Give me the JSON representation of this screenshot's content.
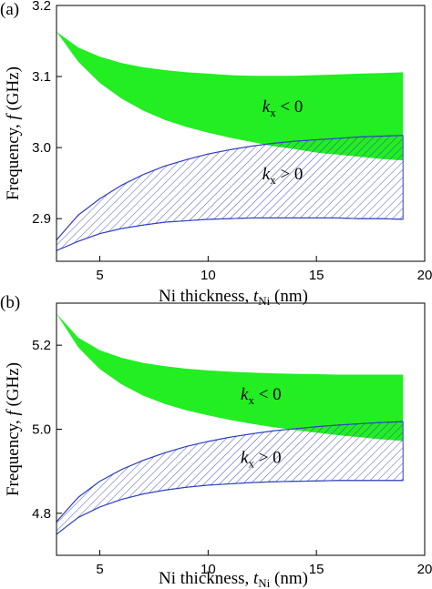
{
  "chart_data": [
    {
      "panel_label": "(a)",
      "type": "area",
      "xlabel_main": "Ni thickness, ",
      "xlabel_var": "t",
      "xlabel_sub": "Ni",
      "xlabel_unit": " (nm)",
      "ylabel_main": "Frequency, ",
      "ylabel_var": "f",
      "ylabel_unit": " (GHz)",
      "xlim": [
        3,
        20
      ],
      "ylim": [
        2.84,
        3.2
      ],
      "xticks": [
        5,
        10,
        15,
        20
      ],
      "xtick_labels": [
        "5",
        "10",
        "15",
        "20"
      ],
      "yticks": [
        2.9,
        3.0,
        3.1,
        3.2
      ],
      "ytick_labels": [
        "2.9",
        "3.0",
        "3.1",
        "3.2"
      ],
      "grid": false,
      "series": [
        {
          "name_var": "k",
          "name_sub": "x",
          "name_rel": " < 0",
          "fill": "solid",
          "color": "#22ee22",
          "label_pos": [
            12.5,
            3.05
          ],
          "x": [
            3,
            4,
            5,
            6,
            7,
            8,
            9,
            10,
            11,
            12,
            13,
            14,
            15,
            16,
            17,
            18,
            19
          ],
          "upper": [
            3.163,
            3.141,
            3.128,
            3.119,
            3.113,
            3.109,
            3.106,
            3.104,
            3.102,
            3.101,
            3.101,
            3.101,
            3.102,
            3.103,
            3.104,
            3.105,
            3.106
          ],
          "lower": [
            3.163,
            3.121,
            3.091,
            3.069,
            3.052,
            3.039,
            3.029,
            3.021,
            3.014,
            3.008,
            3.002,
            2.998,
            2.993,
            2.99,
            2.987,
            2.984,
            2.982
          ]
        },
        {
          "name_var": "k",
          "name_sub": "x",
          "name_rel": " > 0",
          "fill": "hatch",
          "color": "#3340c0",
          "label_pos": [
            12.5,
            2.955
          ],
          "x": [
            3,
            4,
            5,
            6,
            7,
            8,
            9,
            10,
            11,
            12,
            13,
            14,
            15,
            16,
            17,
            18,
            19
          ],
          "upper": [
            2.87,
            2.905,
            2.928,
            2.947,
            2.962,
            2.974,
            2.983,
            2.991,
            2.997,
            3.002,
            3.006,
            3.009,
            3.011,
            3.013,
            3.015,
            3.016,
            3.017
          ],
          "lower": [
            2.855,
            2.868,
            2.879,
            2.886,
            2.891,
            2.895,
            2.897,
            2.899,
            2.9,
            2.901,
            2.901,
            2.901,
            2.901,
            2.901,
            2.9,
            2.9,
            2.899
          ]
        }
      ]
    },
    {
      "panel_label": "(b)",
      "type": "area",
      "xlabel_main": "Ni thickness, ",
      "xlabel_var": "t",
      "xlabel_sub": "Ni",
      "xlabel_unit": " (nm)",
      "ylabel_main": "Frequency, ",
      "ylabel_var": "f",
      "ylabel_unit": " (GHz)",
      "xlim": [
        3,
        20
      ],
      "ylim": [
        4.7,
        5.3
      ],
      "xticks": [
        5,
        10,
        15,
        20
      ],
      "xtick_labels": [
        "5",
        "10",
        "15",
        "20"
      ],
      "yticks": [
        4.8,
        5.0,
        5.2
      ],
      "ytick_labels": [
        "4.8",
        "5.0",
        "5.2"
      ],
      "grid": false,
      "series": [
        {
          "name_var": "k",
          "name_sub": "x",
          "name_rel": " < 0",
          "fill": "solid",
          "color": "#22ee22",
          "label_pos": [
            11.5,
            5.07
          ],
          "x": [
            3,
            4,
            5,
            6,
            7,
            8,
            9,
            10,
            11,
            12,
            13,
            14,
            15,
            16,
            17,
            18,
            19
          ],
          "upper": [
            5.275,
            5.218,
            5.188,
            5.17,
            5.158,
            5.15,
            5.144,
            5.14,
            5.137,
            5.135,
            5.133,
            5.132,
            5.131,
            5.13,
            5.13,
            5.13,
            5.13
          ],
          "lower": [
            5.275,
            5.195,
            5.143,
            5.107,
            5.08,
            5.06,
            5.045,
            5.033,
            5.022,
            5.013,
            5.005,
            4.998,
            4.992,
            4.986,
            4.981,
            4.976,
            4.972
          ]
        },
        {
          "name_var": "k",
          "name_sub": "x",
          "name_rel": " > 0",
          "fill": "hatch",
          "color": "#3340c0",
          "label_pos": [
            11.5,
            4.92
          ],
          "x": [
            3,
            4,
            5,
            6,
            7,
            8,
            9,
            10,
            11,
            12,
            13,
            14,
            15,
            16,
            17,
            18,
            19
          ],
          "upper": [
            4.78,
            4.838,
            4.876,
            4.904,
            4.926,
            4.944,
            4.959,
            4.971,
            4.981,
            4.989,
            4.996,
            5.001,
            5.006,
            5.01,
            5.013,
            5.016,
            5.018
          ],
          "lower": [
            4.75,
            4.79,
            4.815,
            4.833,
            4.846,
            4.855,
            4.862,
            4.867,
            4.87,
            4.873,
            4.875,
            4.876,
            4.877,
            4.878,
            4.878,
            4.878,
            4.878
          ]
        }
      ]
    }
  ]
}
